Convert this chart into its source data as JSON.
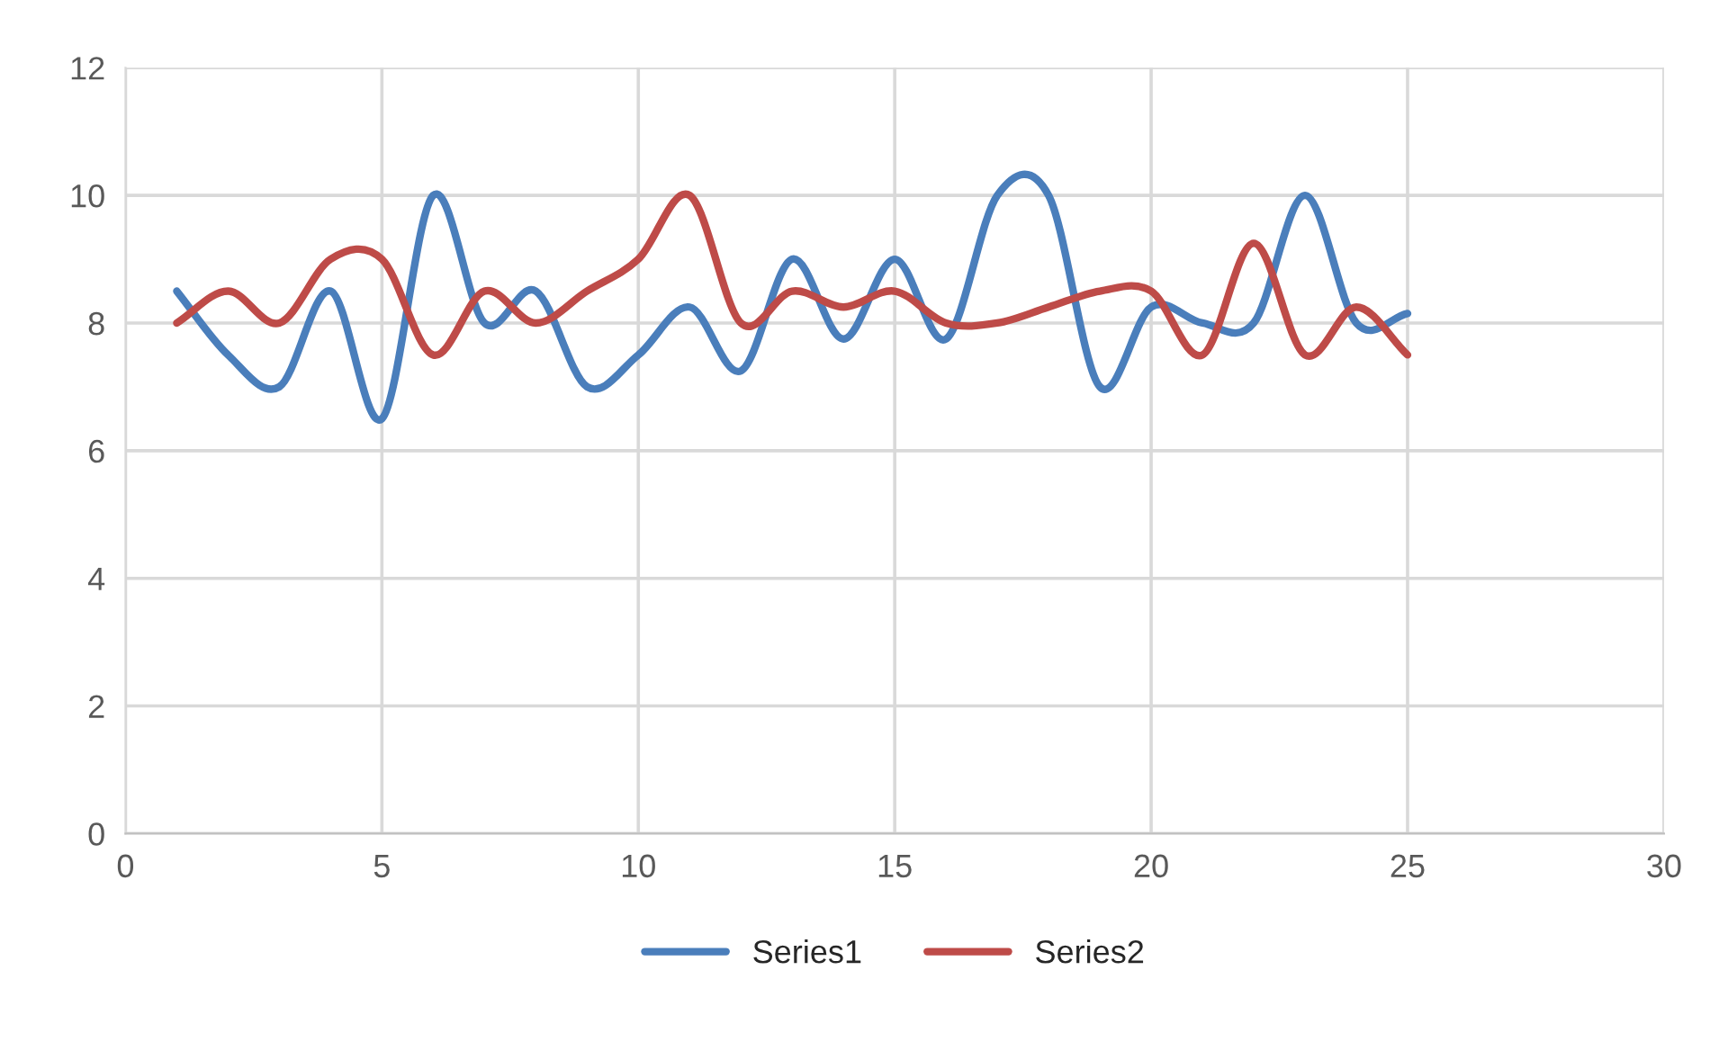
{
  "chart_data": {
    "type": "line",
    "x": [
      1,
      2,
      3,
      4,
      5,
      6,
      7,
      8,
      9,
      10,
      11,
      12,
      13,
      14,
      15,
      16,
      17,
      18,
      19,
      20,
      21,
      22,
      23,
      24,
      25
    ],
    "series": [
      {
        "name": "Series1",
        "color": "#4a7ebb",
        "values": [
          8.5,
          7.5,
          7,
          8.5,
          6.5,
          10,
          8,
          8.5,
          7,
          7.5,
          8.25,
          7.25,
          9,
          7.75,
          9,
          7.75,
          10,
          10,
          7,
          8.25,
          8,
          8,
          10,
          8,
          8.15
        ]
      },
      {
        "name": "Series2",
        "color": "#be4b48",
        "values": [
          8,
          8.5,
          8,
          9,
          9,
          7.5,
          8.5,
          8,
          8.5,
          9,
          10,
          8,
          8.5,
          8.25,
          8.5,
          8,
          8,
          8.25,
          8.5,
          8.5,
          7.5,
          9.25,
          7.5,
          8.25,
          7.5
        ]
      }
    ],
    "xlim": [
      0,
      30
    ],
    "xticks": [
      0,
      5,
      10,
      15,
      20,
      25,
      30
    ],
    "ylim": [
      0,
      12
    ],
    "yticks": [
      0,
      2,
      4,
      6,
      8,
      10,
      12
    ],
    "grid": true,
    "legend": "bottom",
    "marker": "none",
    "line_style": "solid"
  }
}
